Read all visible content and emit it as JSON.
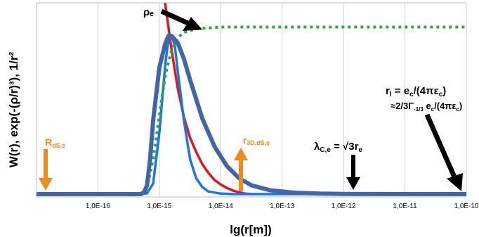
{
  "chart_data": {
    "type": "line",
    "xlabel": "lg(r[m])",
    "ylabel": "W(r), exp(-(ρ/r)³), 1/r²",
    "x_scale": "log",
    "xlim": [
      "1,0E-17",
      "1,0E-10"
    ],
    "x_ticks": [
      "1,0E-16",
      "1,0E-15",
      "1,0E-14",
      "1,0E-13",
      "1,0E-12",
      "1,0E-11",
      "1,0E-10"
    ],
    "grid": "vertical",
    "series": [
      {
        "color": "#e8141c",
        "style": "solid",
        "points": [
          [
            -14.95,
            1.2
          ],
          [
            -14.8,
            0.82
          ],
          [
            -14.7,
            0.6
          ],
          [
            -14.6,
            0.44
          ],
          [
            -14.5,
            0.32
          ],
          [
            -14.4,
            0.24
          ],
          [
            -14.3,
            0.17
          ],
          [
            -14.2,
            0.12
          ],
          [
            -14.1,
            0.08
          ],
          [
            -14.0,
            0.055
          ],
          [
            -13.9,
            0.035
          ],
          [
            -13.8,
            0.02
          ],
          [
            -13.7,
            0.01
          ],
          [
            -13.6,
            0.003
          ],
          [
            -13.5,
            0.0
          ]
        ]
      },
      {
        "color": "#1478e6",
        "style": "solid",
        "points": [
          [
            -17.0,
            0.0
          ],
          [
            -15.3,
            0.0
          ],
          [
            -15.2,
            0.005
          ],
          [
            -15.1,
            0.06
          ],
          [
            -15.0,
            0.35
          ],
          [
            -14.9,
            0.75
          ],
          [
            -14.85,
            0.88
          ],
          [
            -14.8,
            0.9
          ],
          [
            -14.75,
            0.85
          ],
          [
            -14.7,
            0.7
          ],
          [
            -14.6,
            0.42
          ],
          [
            -14.5,
            0.2
          ],
          [
            -14.4,
            0.09
          ],
          [
            -14.3,
            0.04
          ],
          [
            -14.2,
            0.015
          ],
          [
            -14.0,
            0.003
          ],
          [
            -13.8,
            0.0
          ],
          [
            -10.0,
            0.0
          ]
        ]
      },
      {
        "color": "#2ea83c",
        "style": "dotted",
        "points": [
          [
            -15.3,
            0.0
          ],
          [
            -15.2,
            0.04
          ],
          [
            -15.1,
            0.2
          ],
          [
            -15.0,
            0.45
          ],
          [
            -14.9,
            0.68
          ],
          [
            -14.8,
            0.82
          ],
          [
            -14.7,
            0.89
          ],
          [
            -14.6,
            0.92
          ],
          [
            -14.4,
            0.94
          ],
          [
            -14.0,
            0.95
          ],
          [
            -13.0,
            0.95
          ],
          [
            -10.0,
            0.95
          ]
        ]
      },
      {
        "color": "#4166a8",
        "style": "solid-thick",
        "points": [
          [
            -17.0,
            0.0
          ],
          [
            -15.3,
            0.0
          ],
          [
            -15.25,
            0.01
          ],
          [
            -15.2,
            0.05
          ],
          [
            -15.15,
            0.2
          ],
          [
            -15.1,
            0.42
          ],
          [
            -15.0,
            0.72
          ],
          [
            -14.9,
            0.86
          ],
          [
            -14.85,
            0.9
          ],
          [
            -14.8,
            0.9
          ],
          [
            -14.7,
            0.86
          ],
          [
            -14.6,
            0.77
          ],
          [
            -14.5,
            0.65
          ],
          [
            -14.3,
            0.43
          ],
          [
            -14.1,
            0.27
          ],
          [
            -13.9,
            0.16
          ],
          [
            -13.7,
            0.09
          ],
          [
            -13.5,
            0.05
          ],
          [
            -13.2,
            0.022
          ],
          [
            -12.8,
            0.008
          ],
          [
            -12.4,
            0.003
          ],
          [
            -12.0,
            0.001
          ],
          [
            -10.0,
            0.0
          ]
        ]
      }
    ]
  },
  "annotations": {
    "rho_e": "ρₑ",
    "r_ds": "R",
    "r_ds_sub": "dS,e",
    "r3d": "r",
    "r3d_sub": "3D,dS,e",
    "lambda": "λ",
    "lambda_sub": "C,e",
    "lambda_rest": " = √3r",
    "lambda_rest_sub": "e",
    "rl_1": "r",
    "rl_1_sub": "l",
    "rl_1_rest": " = e",
    "rl_1_sub2": "c",
    "rl_1_rest2": "/(4πε",
    "rl_1_sub3": "c",
    "rl_1_end": ")",
    "rl_2": "≈2/3Γ",
    "rl_2_sub": "-1/3",
    "rl_2_rest": " e",
    "rl_2_sub2": "c",
    "rl_2_rest2": "/(4πε",
    "rl_2_sub3": "c",
    "rl_2_end": ")"
  },
  "colors": {
    "orange": "#f08a1e",
    "black": "#000000",
    "grid": "#d0d0d0"
  }
}
